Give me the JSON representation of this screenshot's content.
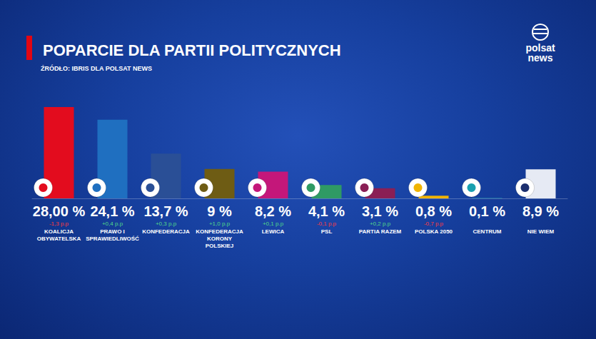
{
  "chart_data": {
    "type": "bar",
    "title": "POPARCIE DLA PARTII POLITYCZNYCH",
    "subtitle": "ŹRÓDŁO: IBRIS DLA POLSAT NEWS",
    "logo": [
      "polsat",
      "news"
    ],
    "categories": [
      "KOALICJA OBYWATELSKA",
      "PRAWO I SPRAWIEDLIWOŚĆ",
      "KONFEDERACJA",
      "KONFEDERACJA KORONY POLSKIEJ",
      "LEWICA",
      "PSL",
      "PARTIA RAZEM",
      "POLSKA 2050",
      "CENTRUM",
      "NIE WIEM"
    ],
    "values": [
      28,
      24.1,
      13.7,
      9,
      8.2,
      4.1,
      3.1,
      0.8,
      0.1,
      8.9
    ],
    "value_labels": [
      "28,00 %",
      "24,1 %",
      "13,7 %",
      "9 %",
      "8,2 %",
      "4,1 %",
      "3,1 %",
      "0,8 %",
      "0,1 %",
      "8,9 %"
    ],
    "changes": [
      -1.3,
      0.4,
      0.3,
      1.0,
      0.1,
      -0.1,
      0.2,
      -0.7,
      null,
      null
    ],
    "change_labels": [
      "-1,3 p.p",
      "+0,4 p.p",
      "+0,3 p.p",
      "+1,0 p.p",
      "+0,1 p.p",
      "-0,1 p.p",
      "+0,2 p.p",
      "-0,7 p.p",
      null,
      null
    ],
    "colors": [
      "#e30c1e",
      "#1f6fc0",
      "#2a4f96",
      "#6e5c14",
      "#c4177a",
      "#2f9a64",
      "#8a1f55",
      "#f0b400",
      "#1aa0b0",
      "#e6eaf4"
    ],
    "ylim": [
      0,
      28
    ],
    "grid": false,
    "data_labels": true,
    "tick_labels": "x"
  }
}
